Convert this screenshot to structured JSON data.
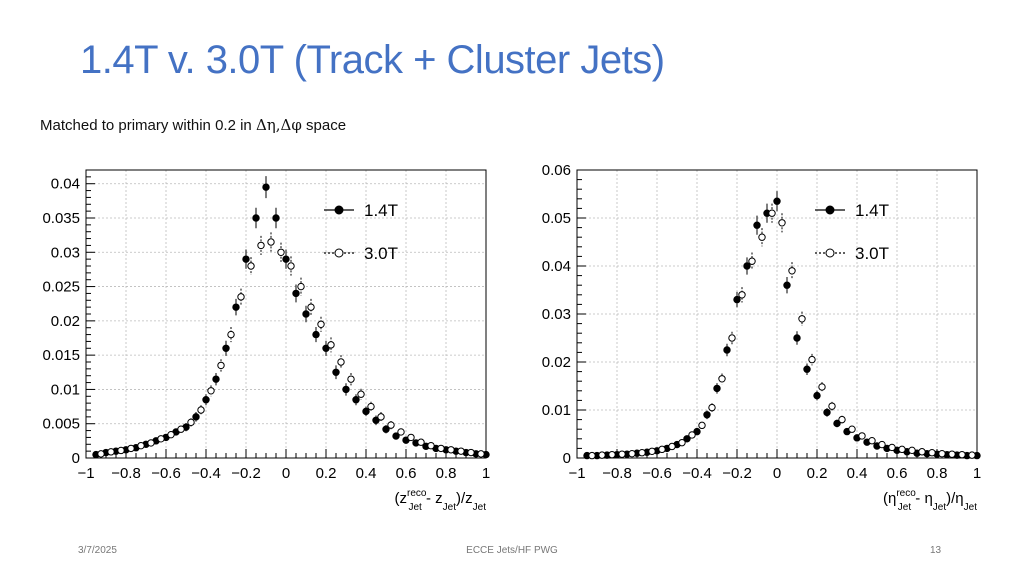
{
  "slide": {
    "title": "1.4T v. 3.0T (Track + Cluster Jets)",
    "subtitle_prefix": "Matched to primary within 0.2 in ",
    "subtitle_symbol": "Δη,Δφ",
    "subtitle_suffix": " space"
  },
  "footer": {
    "date": "3/7/2025",
    "center": "ECCE Jets/HF PWG",
    "page": "13"
  },
  "colors": {
    "title": "#4472c4",
    "marker": "#000000",
    "axis": "#000000",
    "grid": "#bbbbbb"
  },
  "chart_data": [
    {
      "type": "scatter",
      "title": "",
      "xlabel": "(z^reco_Jet - z_Jet)/z_Jet",
      "xlabel_parts": {
        "open": "(z",
        "sup": "reco",
        "sub1": "Jet",
        "mid": " - z",
        "sub2": "Jet",
        "div": ")/z",
        "sub3": "Jet"
      },
      "ylabel": "",
      "xlim": [
        -1,
        1
      ],
      "ylim": [
        0,
        0.042
      ],
      "xticks": [
        -1,
        -0.8,
        -0.6,
        -0.4,
        -0.2,
        0,
        0.2,
        0.4,
        0.6,
        0.8,
        1
      ],
      "xtick_labels": [
        "−1",
        "−0.8",
        "−0.6",
        "−0.4",
        "−0.2",
        "0",
        "0.2",
        "0.4",
        "0.6",
        "0.8",
        "1"
      ],
      "yticks": [
        0,
        0.005,
        0.01,
        0.015,
        0.02,
        0.025,
        0.03,
        0.035,
        0.04
      ],
      "ytick_labels": [
        "0",
        "0.005",
        "0.01",
        "0.015",
        "0.02",
        "0.025",
        "0.03",
        "0.035",
        "0.04"
      ],
      "grid": true,
      "legend_position": "top-right",
      "series": [
        {
          "name": "1.4T",
          "marker": "filled",
          "x": [
            -0.95,
            -0.9,
            -0.85,
            -0.8,
            -0.75,
            -0.7,
            -0.65,
            -0.6,
            -0.55,
            -0.5,
            -0.45,
            -0.4,
            -0.35,
            -0.3,
            -0.25,
            -0.2,
            -0.15,
            -0.1,
            -0.05,
            0,
            0.05,
            0.1,
            0.15,
            0.2,
            0.25,
            0.3,
            0.35,
            0.4,
            0.45,
            0.5,
            0.55,
            0.6,
            0.65,
            0.7,
            0.75,
            0.8,
            0.85,
            0.9,
            0.95,
            1.0
          ],
          "y": [
            0.0005,
            0.0008,
            0.001,
            0.0012,
            0.0015,
            0.002,
            0.0025,
            0.003,
            0.0038,
            0.0045,
            0.006,
            0.0085,
            0.0115,
            0.016,
            0.022,
            0.029,
            0.035,
            0.0395,
            0.035,
            0.029,
            0.024,
            0.021,
            0.018,
            0.016,
            0.0125,
            0.01,
            0.0085,
            0.0068,
            0.0055,
            0.0042,
            0.0032,
            0.0026,
            0.0022,
            0.0017,
            0.0014,
            0.0012,
            0.001,
            0.0008,
            0.0006,
            0.0005
          ],
          "err": [
            0.0002,
            0.0002,
            0.0003,
            0.0003,
            0.0003,
            0.0004,
            0.0004,
            0.0005,
            0.0005,
            0.0006,
            0.0007,
            0.0008,
            0.0009,
            0.0011,
            0.0012,
            0.0014,
            0.0015,
            0.0016,
            0.0015,
            0.0014,
            0.0013,
            0.0012,
            0.0011,
            0.0011,
            0.001,
            0.0009,
            0.0008,
            0.0007,
            0.0007,
            0.0006,
            0.0005,
            0.0005,
            0.0004,
            0.0004,
            0.0004,
            0.0003,
            0.0003,
            0.0003,
            0.0002,
            0.0002
          ]
        },
        {
          "name": "3.0T",
          "marker": "open",
          "x": [
            -0.925,
            -0.875,
            -0.825,
            -0.775,
            -0.725,
            -0.675,
            -0.625,
            -0.575,
            -0.525,
            -0.475,
            -0.425,
            -0.375,
            -0.325,
            -0.275,
            -0.225,
            -0.175,
            -0.125,
            -0.075,
            -0.025,
            0.025,
            0.075,
            0.125,
            0.175,
            0.225,
            0.275,
            0.325,
            0.375,
            0.425,
            0.475,
            0.525,
            0.575,
            0.625,
            0.675,
            0.725,
            0.775,
            0.825,
            0.875,
            0.925,
            0.975
          ],
          "y": [
            0.0006,
            0.0009,
            0.0011,
            0.0014,
            0.0018,
            0.0022,
            0.0028,
            0.0034,
            0.0042,
            0.0052,
            0.007,
            0.0098,
            0.0135,
            0.018,
            0.0235,
            0.028,
            0.031,
            0.0315,
            0.03,
            0.028,
            0.025,
            0.022,
            0.0195,
            0.0165,
            0.014,
            0.0115,
            0.0093,
            0.0075,
            0.006,
            0.0048,
            0.0038,
            0.003,
            0.0023,
            0.0018,
            0.0014,
            0.0012,
            0.001,
            0.0008,
            0.0006
          ],
          "err": [
            0.0002,
            0.0002,
            0.0003,
            0.0003,
            0.0003,
            0.0004,
            0.0004,
            0.0005,
            0.0005,
            0.0006,
            0.0007,
            0.0008,
            0.0009,
            0.0011,
            0.0012,
            0.0013,
            0.0014,
            0.0014,
            0.0014,
            0.0014,
            0.0013,
            0.0012,
            0.0011,
            0.0011,
            0.001,
            0.0009,
            0.0008,
            0.0007,
            0.0007,
            0.0006,
            0.0005,
            0.0005,
            0.0004,
            0.0004,
            0.0004,
            0.0003,
            0.0003,
            0.0003,
            0.0002
          ]
        }
      ]
    },
    {
      "type": "scatter",
      "title": "",
      "xlabel": "(η^reco_Jet - η_Jet)/η_Jet",
      "xlabel_parts": {
        "open": "(η",
        "sup": "reco",
        "sub1": "Jet",
        "mid": " - η",
        "sub2": "Jet",
        "div": ")/η",
        "sub3": "Jet"
      },
      "ylabel": "",
      "xlim": [
        -1,
        1
      ],
      "ylim": [
        0,
        0.06
      ],
      "xticks": [
        -1,
        -0.8,
        -0.6,
        -0.4,
        -0.2,
        0,
        0.2,
        0.4,
        0.6,
        0.8,
        1
      ],
      "xtick_labels": [
        "−1",
        "−0.8",
        "−0.6",
        "−0.4",
        "−0.2",
        "0",
        "0.2",
        "0.4",
        "0.6",
        "0.8",
        "1"
      ],
      "yticks": [
        0,
        0.01,
        0.02,
        0.03,
        0.04,
        0.05,
        0.06
      ],
      "ytick_labels": [
        "0",
        "0.01",
        "0.02",
        "0.03",
        "0.04",
        "0.05",
        "0.06"
      ],
      "grid": true,
      "legend_position": "top-right",
      "series": [
        {
          "name": "1.4T",
          "marker": "filled",
          "x": [
            -0.95,
            -0.9,
            -0.85,
            -0.8,
            -0.75,
            -0.7,
            -0.65,
            -0.6,
            -0.55,
            -0.5,
            -0.45,
            -0.4,
            -0.35,
            -0.3,
            -0.25,
            -0.2,
            -0.15,
            -0.1,
            -0.05,
            0,
            0.05,
            0.1,
            0.15,
            0.2,
            0.25,
            0.3,
            0.35,
            0.4,
            0.45,
            0.5,
            0.55,
            0.6,
            0.65,
            0.7,
            0.75,
            0.8,
            0.85,
            0.9,
            0.95,
            1.0
          ],
          "y": [
            0.0005,
            0.0005,
            0.0006,
            0.0007,
            0.0008,
            0.001,
            0.0012,
            0.0015,
            0.002,
            0.0028,
            0.004,
            0.0055,
            0.009,
            0.0145,
            0.0225,
            0.033,
            0.04,
            0.0485,
            0.051,
            0.0535,
            0.036,
            0.025,
            0.0185,
            0.013,
            0.0095,
            0.0072,
            0.0055,
            0.0042,
            0.0033,
            0.0025,
            0.002,
            0.0016,
            0.0013,
            0.001,
            0.0009,
            0.0008,
            0.0007,
            0.0006,
            0.0005,
            0.0005
          ],
          "err": [
            0.0002,
            0.0002,
            0.0002,
            0.0002,
            0.0003,
            0.0003,
            0.0003,
            0.0004,
            0.0004,
            0.0005,
            0.0006,
            0.0007,
            0.0009,
            0.0011,
            0.0013,
            0.0016,
            0.0018,
            0.002,
            0.002,
            0.0021,
            0.0017,
            0.0014,
            0.0012,
            0.001,
            0.0009,
            0.0008,
            0.0007,
            0.0006,
            0.0005,
            0.0005,
            0.0004,
            0.0004,
            0.0003,
            0.0003,
            0.0003,
            0.0003,
            0.0002,
            0.0002,
            0.0002,
            0.0002
          ]
        },
        {
          "name": "3.0T",
          "marker": "open",
          "x": [
            -0.925,
            -0.875,
            -0.825,
            -0.775,
            -0.725,
            -0.675,
            -0.625,
            -0.575,
            -0.525,
            -0.475,
            -0.425,
            -0.375,
            -0.325,
            -0.275,
            -0.225,
            -0.175,
            -0.125,
            -0.075,
            -0.025,
            0.025,
            0.075,
            0.125,
            0.175,
            0.225,
            0.275,
            0.325,
            0.375,
            0.425,
            0.475,
            0.525,
            0.575,
            0.625,
            0.675,
            0.725,
            0.775,
            0.825,
            0.875,
            0.925,
            0.975
          ],
          "y": [
            0.0005,
            0.0006,
            0.0007,
            0.0008,
            0.0009,
            0.0011,
            0.0014,
            0.0018,
            0.0024,
            0.0032,
            0.0048,
            0.0068,
            0.0105,
            0.0165,
            0.025,
            0.034,
            0.041,
            0.046,
            0.051,
            0.049,
            0.039,
            0.029,
            0.0205,
            0.0148,
            0.0108,
            0.008,
            0.006,
            0.0046,
            0.0036,
            0.0028,
            0.0022,
            0.0018,
            0.0016,
            0.0013,
            0.0011,
            0.0009,
            0.0008,
            0.0007,
            0.0006
          ],
          "err": [
            0.0002,
            0.0002,
            0.0002,
            0.0002,
            0.0003,
            0.0003,
            0.0003,
            0.0004,
            0.0004,
            0.0005,
            0.0006,
            0.0007,
            0.0009,
            0.0011,
            0.0013,
            0.0016,
            0.0018,
            0.0019,
            0.002,
            0.002,
            0.0018,
            0.0015,
            0.0012,
            0.001,
            0.0009,
            0.0008,
            0.0007,
            0.0006,
            0.0005,
            0.0005,
            0.0004,
            0.0004,
            0.0003,
            0.0003,
            0.0003,
            0.0003,
            0.0002,
            0.0002,
            0.0002
          ]
        }
      ]
    }
  ]
}
